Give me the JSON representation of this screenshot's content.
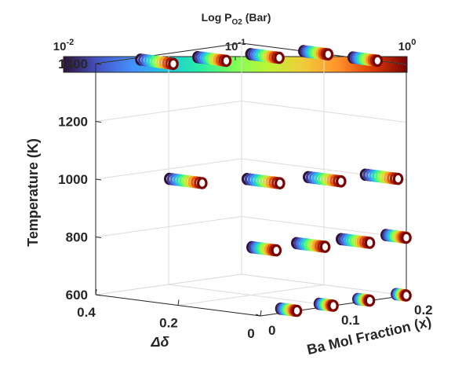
{
  "chart_data": {
    "type": "scatter",
    "projection": "3d",
    "title": "",
    "xlabel": "Ba Mol Fraction (x)",
    "ylabel": "Δδ",
    "zlabel": "Temperature (K)",
    "xlim": [
      0,
      0.2
    ],
    "ylim": [
      0,
      0.4
    ],
    "zlim": [
      600,
      1400
    ],
    "xticks": [
      "0",
      "0.1",
      "0.2"
    ],
    "yticks": [
      "0",
      "0.2",
      "0.4"
    ],
    "zticks": [
      "600",
      "800",
      "1000",
      "1200",
      "1400"
    ],
    "colorbar": {
      "title": "Log P",
      "title_sub": "O2",
      "title_suffix": " (Bar)",
      "colormap": "turbo",
      "scale": "log",
      "ticks": [
        {
          "base": "10",
          "exp": "-2",
          "value": 0.01
        },
        {
          "base": "10",
          "exp": "-1",
          "value": 0.1
        },
        {
          "base": "10",
          "exp": "0",
          "value": 1
        }
      ]
    },
    "grid": true,
    "marker": "open-circle",
    "pO2_levels": [
      0.01,
      0.014,
      0.02,
      0.03,
      0.05,
      0.08,
      0.12,
      0.2,
      0.35,
      0.55,
      0.8,
      1.0
    ],
    "series": [
      {
        "x": 0.05,
        "T": 1400,
        "dmin": 0.3,
        "dmax": 0.38
      },
      {
        "x": 0.1,
        "T": 1400,
        "dmin": 0.26,
        "dmax": 0.33
      },
      {
        "x": 0.15,
        "T": 1400,
        "dmin": 0.22,
        "dmax": 0.29
      },
      {
        "x": 0.2,
        "T": 1400,
        "dmin": 0.19,
        "dmax": 0.25
      },
      {
        "x": 0.2,
        "T": 1400,
        "dmin": 0.07,
        "dmax": 0.13
      },
      {
        "x": 0.05,
        "T": 1000,
        "dmin": 0.23,
        "dmax": 0.31
      },
      {
        "x": 0.1,
        "T": 1000,
        "dmin": 0.13,
        "dmax": 0.21
      },
      {
        "x": 0.15,
        "T": 1000,
        "dmin": 0.07,
        "dmax": 0.15
      },
      {
        "x": 0.2,
        "T": 1000,
        "dmin": 0.02,
        "dmax": 0.1
      },
      {
        "x": 0.05,
        "T": 800,
        "dmin": 0.05,
        "dmax": 0.11
      },
      {
        "x": 0.1,
        "T": 800,
        "dmin": 0.02,
        "dmax": 0.09
      },
      {
        "x": 0.15,
        "T": 800,
        "dmin": 0.0,
        "dmax": 0.07
      },
      {
        "x": 0.2,
        "T": 800,
        "dmin": 0.0,
        "dmax": 0.05
      },
      {
        "x": 0.05,
        "T": 600,
        "dmin": 0.0,
        "dmax": 0.04
      },
      {
        "x": 0.1,
        "T": 600,
        "dmin": 0.0,
        "dmax": 0.035
      },
      {
        "x": 0.15,
        "T": 600,
        "dmin": 0.0,
        "dmax": 0.03
      },
      {
        "x": 0.2,
        "T": 600,
        "dmin": 0.0,
        "dmax": 0.025
      }
    ]
  }
}
